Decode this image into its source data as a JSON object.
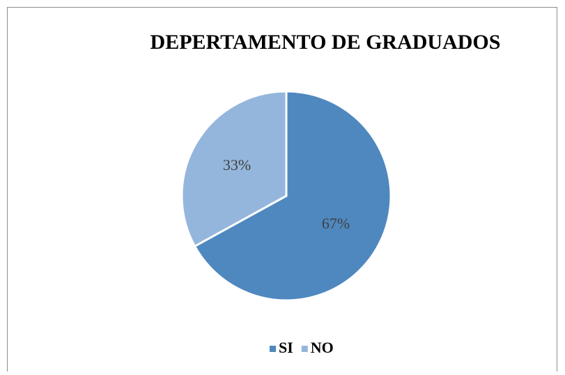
{
  "chart_data": {
    "type": "pie",
    "title": "DEPERTAMENTO DE GRADUADOS",
    "categories": [
      "SI",
      "NO"
    ],
    "values": [
      67,
      33
    ],
    "value_labels": [
      "67%",
      "33%"
    ],
    "colors": [
      "#4f88bf",
      "#95b6dc"
    ],
    "legend": "bottom"
  }
}
